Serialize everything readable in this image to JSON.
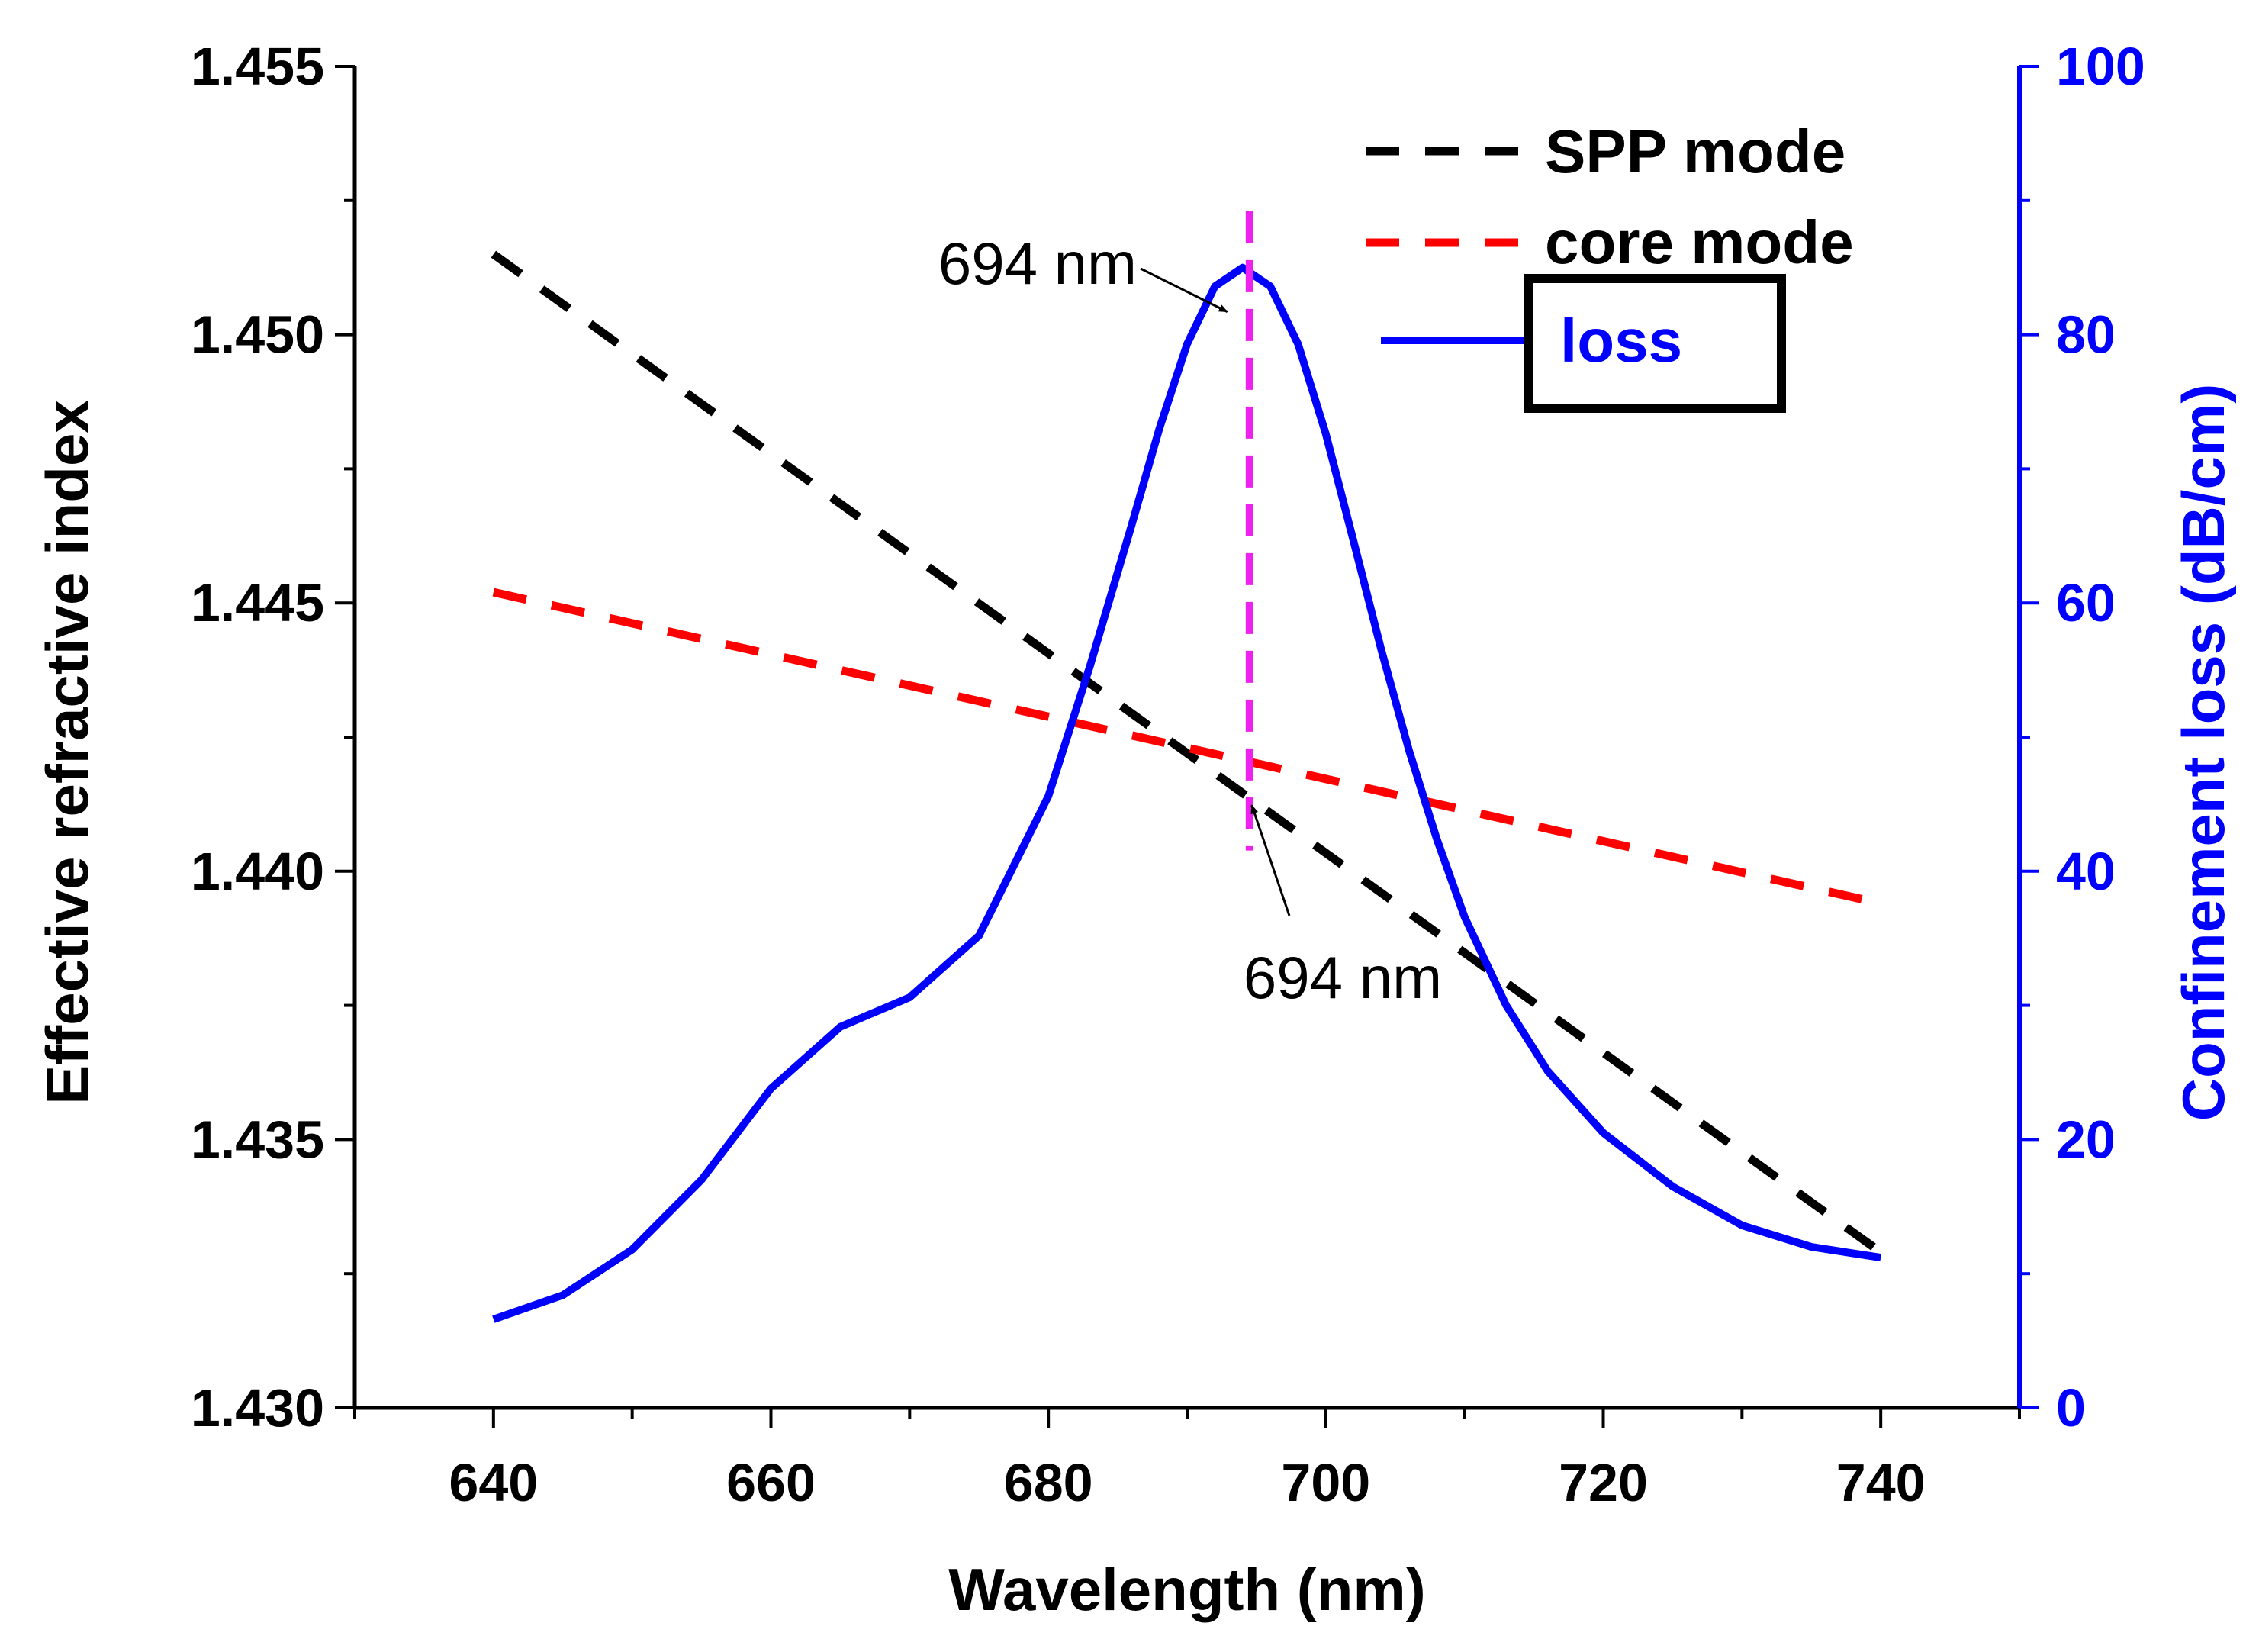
{
  "chart_data": {
    "type": "line",
    "x": [
      640,
      650,
      660,
      670,
      680,
      690,
      694,
      700,
      710,
      720,
      730,
      740
    ],
    "xlabel": "Wavelength (nm)",
    "ylabel": "Effective refractive index",
    "ylabel_right": "Confinement loss (dB/cm)",
    "xlim": [
      630,
      750
    ],
    "ylim": [
      1.43,
      1.455
    ],
    "ylim_right": [
      0,
      100
    ],
    "xticks": [
      "640",
      "660",
      "680",
      "700",
      "720",
      "740"
    ],
    "yticks": [
      "1.430",
      "1.435",
      "1.440",
      "1.445",
      "1.450",
      "1.455"
    ],
    "yticks_right": [
      "0",
      "20",
      "40",
      "60",
      "80",
      "100"
    ],
    "series": [
      {
        "name": "SPP mode",
        "axis": "left",
        "style": "dashed",
        "color": "#000000",
        "x": [
          640,
          740
        ],
        "values": [
          1.4515,
          1.4329
        ]
      },
      {
        "name": "core mode",
        "axis": "left",
        "style": "dashed",
        "color": "#ff0000",
        "x": [
          640,
          740
        ],
        "values": [
          1.4452,
          1.4394
        ]
      },
      {
        "name": "loss",
        "axis": "right",
        "style": "solid",
        "color": "#0000ff",
        "x": [
          640,
          645,
          650,
          655,
          660,
          665,
          670,
          675,
          680,
          683,
          686,
          688,
          690,
          692,
          694,
          696,
          698,
          700,
          702,
          704,
          706,
          708,
          710,
          713,
          716,
          720,
          725,
          730,
          735,
          740
        ],
        "values": [
          6.6,
          8.4,
          11.8,
          17.0,
          23.8,
          28.4,
          30.6,
          35.2,
          45.6,
          55.3,
          65.8,
          73.0,
          79.3,
          83.6,
          85.0,
          83.6,
          79.3,
          72.6,
          64.6,
          56.5,
          49.0,
          42.4,
          36.6,
          30.0,
          25.1,
          20.5,
          16.5,
          13.6,
          12.0,
          11.2
        ]
      }
    ],
    "vline": {
      "x": 694.5,
      "from": 1.4418,
      "to": 1.4405,
      "top": 1.4523,
      "color": "#ee22ee"
    },
    "annotations": [
      {
        "text": "694 nm",
        "target_x": 694,
        "target_y": 1.45
      },
      {
        "text": "694 nm",
        "target_x": 694,
        "target_y": 1.4418
      }
    ],
    "legend_position": "top-right",
    "colors": {
      "axis_right": "#0000ff",
      "axis_left": "#000000"
    }
  }
}
